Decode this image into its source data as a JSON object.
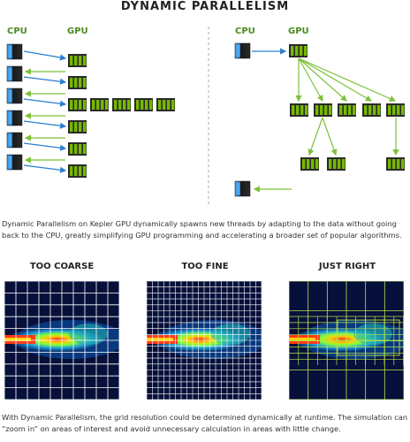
{
  "title": "DYNAMIC PARALLELISM",
  "left_diagram": {
    "cpu_label": "CPU",
    "gpu_label": "GPU"
  },
  "right_diagram": {
    "cpu_label": "CPU",
    "gpu_label": "GPU"
  },
  "caption_top": "Dynamic Parallelism on Kepler GPU dynamically spawns new threads by adapting to the data without going back to the CPU, greatly simplifying GPU programming and accelerating a broader set of popular algorithms.",
  "panels": [
    {
      "title": "TOO COARSE"
    },
    {
      "title": "TOO FINE"
    },
    {
      "title": "JUST RIGHT"
    }
  ],
  "caption_bottom": "With Dynamic Parallelism, the grid resolution could be determined dynamically at runtime. The simulation can “zoom in” on areas of interest and avoid unnecessary calculation in areas with little change.",
  "colors": {
    "gpu_green": "#76b900",
    "cpu_blue": "#1e78c8",
    "label_green": "#4a8a1e",
    "arrow_green": "#7dc13a",
    "arrow_blue": "#2a7fd0"
  }
}
